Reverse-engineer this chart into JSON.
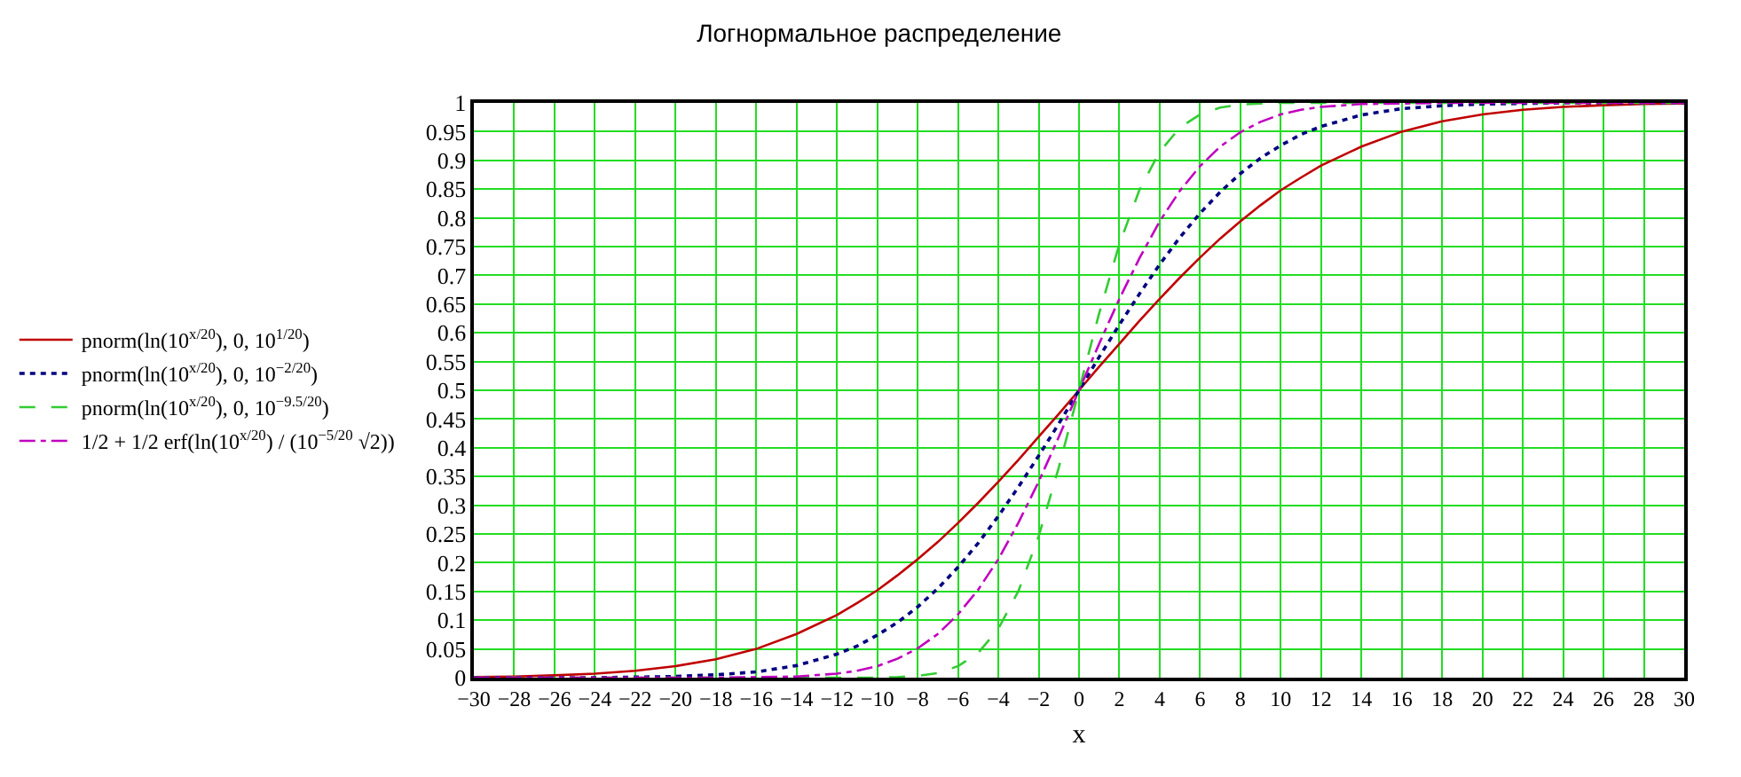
{
  "chart_data": {
    "type": "line",
    "title": "Логнормальное распределение",
    "xlabel": "x",
    "x": [
      -30,
      -28,
      -26,
      -24,
      -22,
      -20,
      -18,
      -16,
      -14,
      -12,
      -11,
      -10,
      -9,
      -8,
      -7,
      -6,
      -5,
      -4,
      -3,
      -2,
      -1,
      0,
      1,
      2,
      3,
      4,
      5,
      6,
      7,
      8,
      9,
      10,
      11,
      12,
      14,
      16,
      18,
      20,
      22,
      24,
      26,
      28,
      30
    ],
    "series": [
      {
        "name": "pnorm(ln(10$^{x/20}$), 0, 10$^{1/20}$)",
        "color": "#c00000",
        "line_style": "solid",
        "values": [
          0.001,
          0.002,
          0.004,
          0.007,
          0.012,
          0.02,
          0.032,
          0.05,
          0.076,
          0.109,
          0.13,
          0.152,
          0.178,
          0.206,
          0.236,
          0.269,
          0.304,
          0.341,
          0.379,
          0.419,
          0.459,
          0.5,
          0.541,
          0.581,
          0.621,
          0.659,
          0.696,
          0.731,
          0.764,
          0.794,
          0.822,
          0.848,
          0.87,
          0.891,
          0.924,
          0.95,
          0.968,
          0.98,
          0.988,
          0.993,
          0.996,
          0.998,
          0.999
        ]
      },
      {
        "name": "pnorm(ln(10$^{x/20}$), 0, 10$^{−2/20}$)",
        "color": "#000080",
        "line_style": "dotted",
        "values": [
          0,
          0,
          0,
          0,
          0.001,
          0.002,
          0.005,
          0.01,
          0.021,
          0.041,
          0.055,
          0.074,
          0.096,
          0.123,
          0.155,
          0.192,
          0.234,
          0.281,
          0.332,
          0.386,
          0.442,
          0.5,
          0.558,
          0.614,
          0.668,
          0.719,
          0.766,
          0.808,
          0.845,
          0.877,
          0.904,
          0.926,
          0.945,
          0.959,
          0.979,
          0.99,
          0.995,
          0.998,
          0.999,
          1,
          1,
          1,
          1
        ]
      },
      {
        "name": "pnorm(ln(10$^{x/20}$), 0, 10$^{−9.5/20}$)",
        "color": "#33cc33",
        "line_style": "dashed",
        "values": [
          0,
          0,
          0,
          0,
          0,
          0,
          0,
          0,
          0,
          0,
          0,
          0,
          0.001,
          0.003,
          0.008,
          0.02,
          0.043,
          0.085,
          0.151,
          0.246,
          0.366,
          0.5,
          0.634,
          0.754,
          0.849,
          0.915,
          0.957,
          0.98,
          0.992,
          0.997,
          0.999,
          1,
          1,
          1,
          1,
          1,
          1,
          1,
          1,
          1,
          1,
          1,
          1
        ]
      },
      {
        "name": "1/2 + 1/2 erf(ln(10$^{x/20}$) / (10$^{−5/20}$ √2))",
        "color": "#c000c0",
        "line_style": "dashdot",
        "values": [
          0,
          0,
          0,
          0,
          0,
          0,
          0,
          0.001,
          0.002,
          0.007,
          0.012,
          0.02,
          0.033,
          0.051,
          0.076,
          0.11,
          0.153,
          0.206,
          0.27,
          0.341,
          0.419,
          0.5,
          0.581,
          0.659,
          0.73,
          0.794,
          0.847,
          0.89,
          0.924,
          0.949,
          0.967,
          0.98,
          0.988,
          0.993,
          0.998,
          0.999,
          1,
          1,
          1,
          1,
          1,
          1,
          1
        ]
      }
    ],
    "xlim": [
      -30,
      30
    ],
    "xticks": [
      {
        "value": -30,
        "label": "−30"
      },
      {
        "value": -28,
        "label": "−28"
      },
      {
        "value": -26,
        "label": "−26"
      },
      {
        "value": -24,
        "label": "−24"
      },
      {
        "value": -22,
        "label": "−22"
      },
      {
        "value": -20,
        "label": "−20"
      },
      {
        "value": -18,
        "label": "−18"
      },
      {
        "value": -16,
        "label": "−16"
      },
      {
        "value": -14,
        "label": "−14"
      },
      {
        "value": -12,
        "label": "−12"
      },
      {
        "value": -10,
        "label": "−10"
      },
      {
        "value": -8,
        "label": "−8"
      },
      {
        "value": -6,
        "label": "−6"
      },
      {
        "value": -4,
        "label": "−4"
      },
      {
        "value": -2,
        "label": "−2"
      },
      0,
      2,
      4,
      6,
      8,
      10,
      12,
      14,
      16,
      18,
      20,
      22,
      24,
      26,
      28,
      30
    ],
    "ylim": [
      0,
      1
    ],
    "yticks": [
      0,
      0.05,
      0.1,
      0.15,
      0.2,
      0.25,
      0.3,
      0.35,
      0.4,
      0.45,
      0.5,
      0.55,
      0.6,
      0.65,
      0.7,
      0.75,
      0.8,
      0.85,
      0.9,
      0.95,
      1
    ],
    "grid": true,
    "legend": "left"
  }
}
